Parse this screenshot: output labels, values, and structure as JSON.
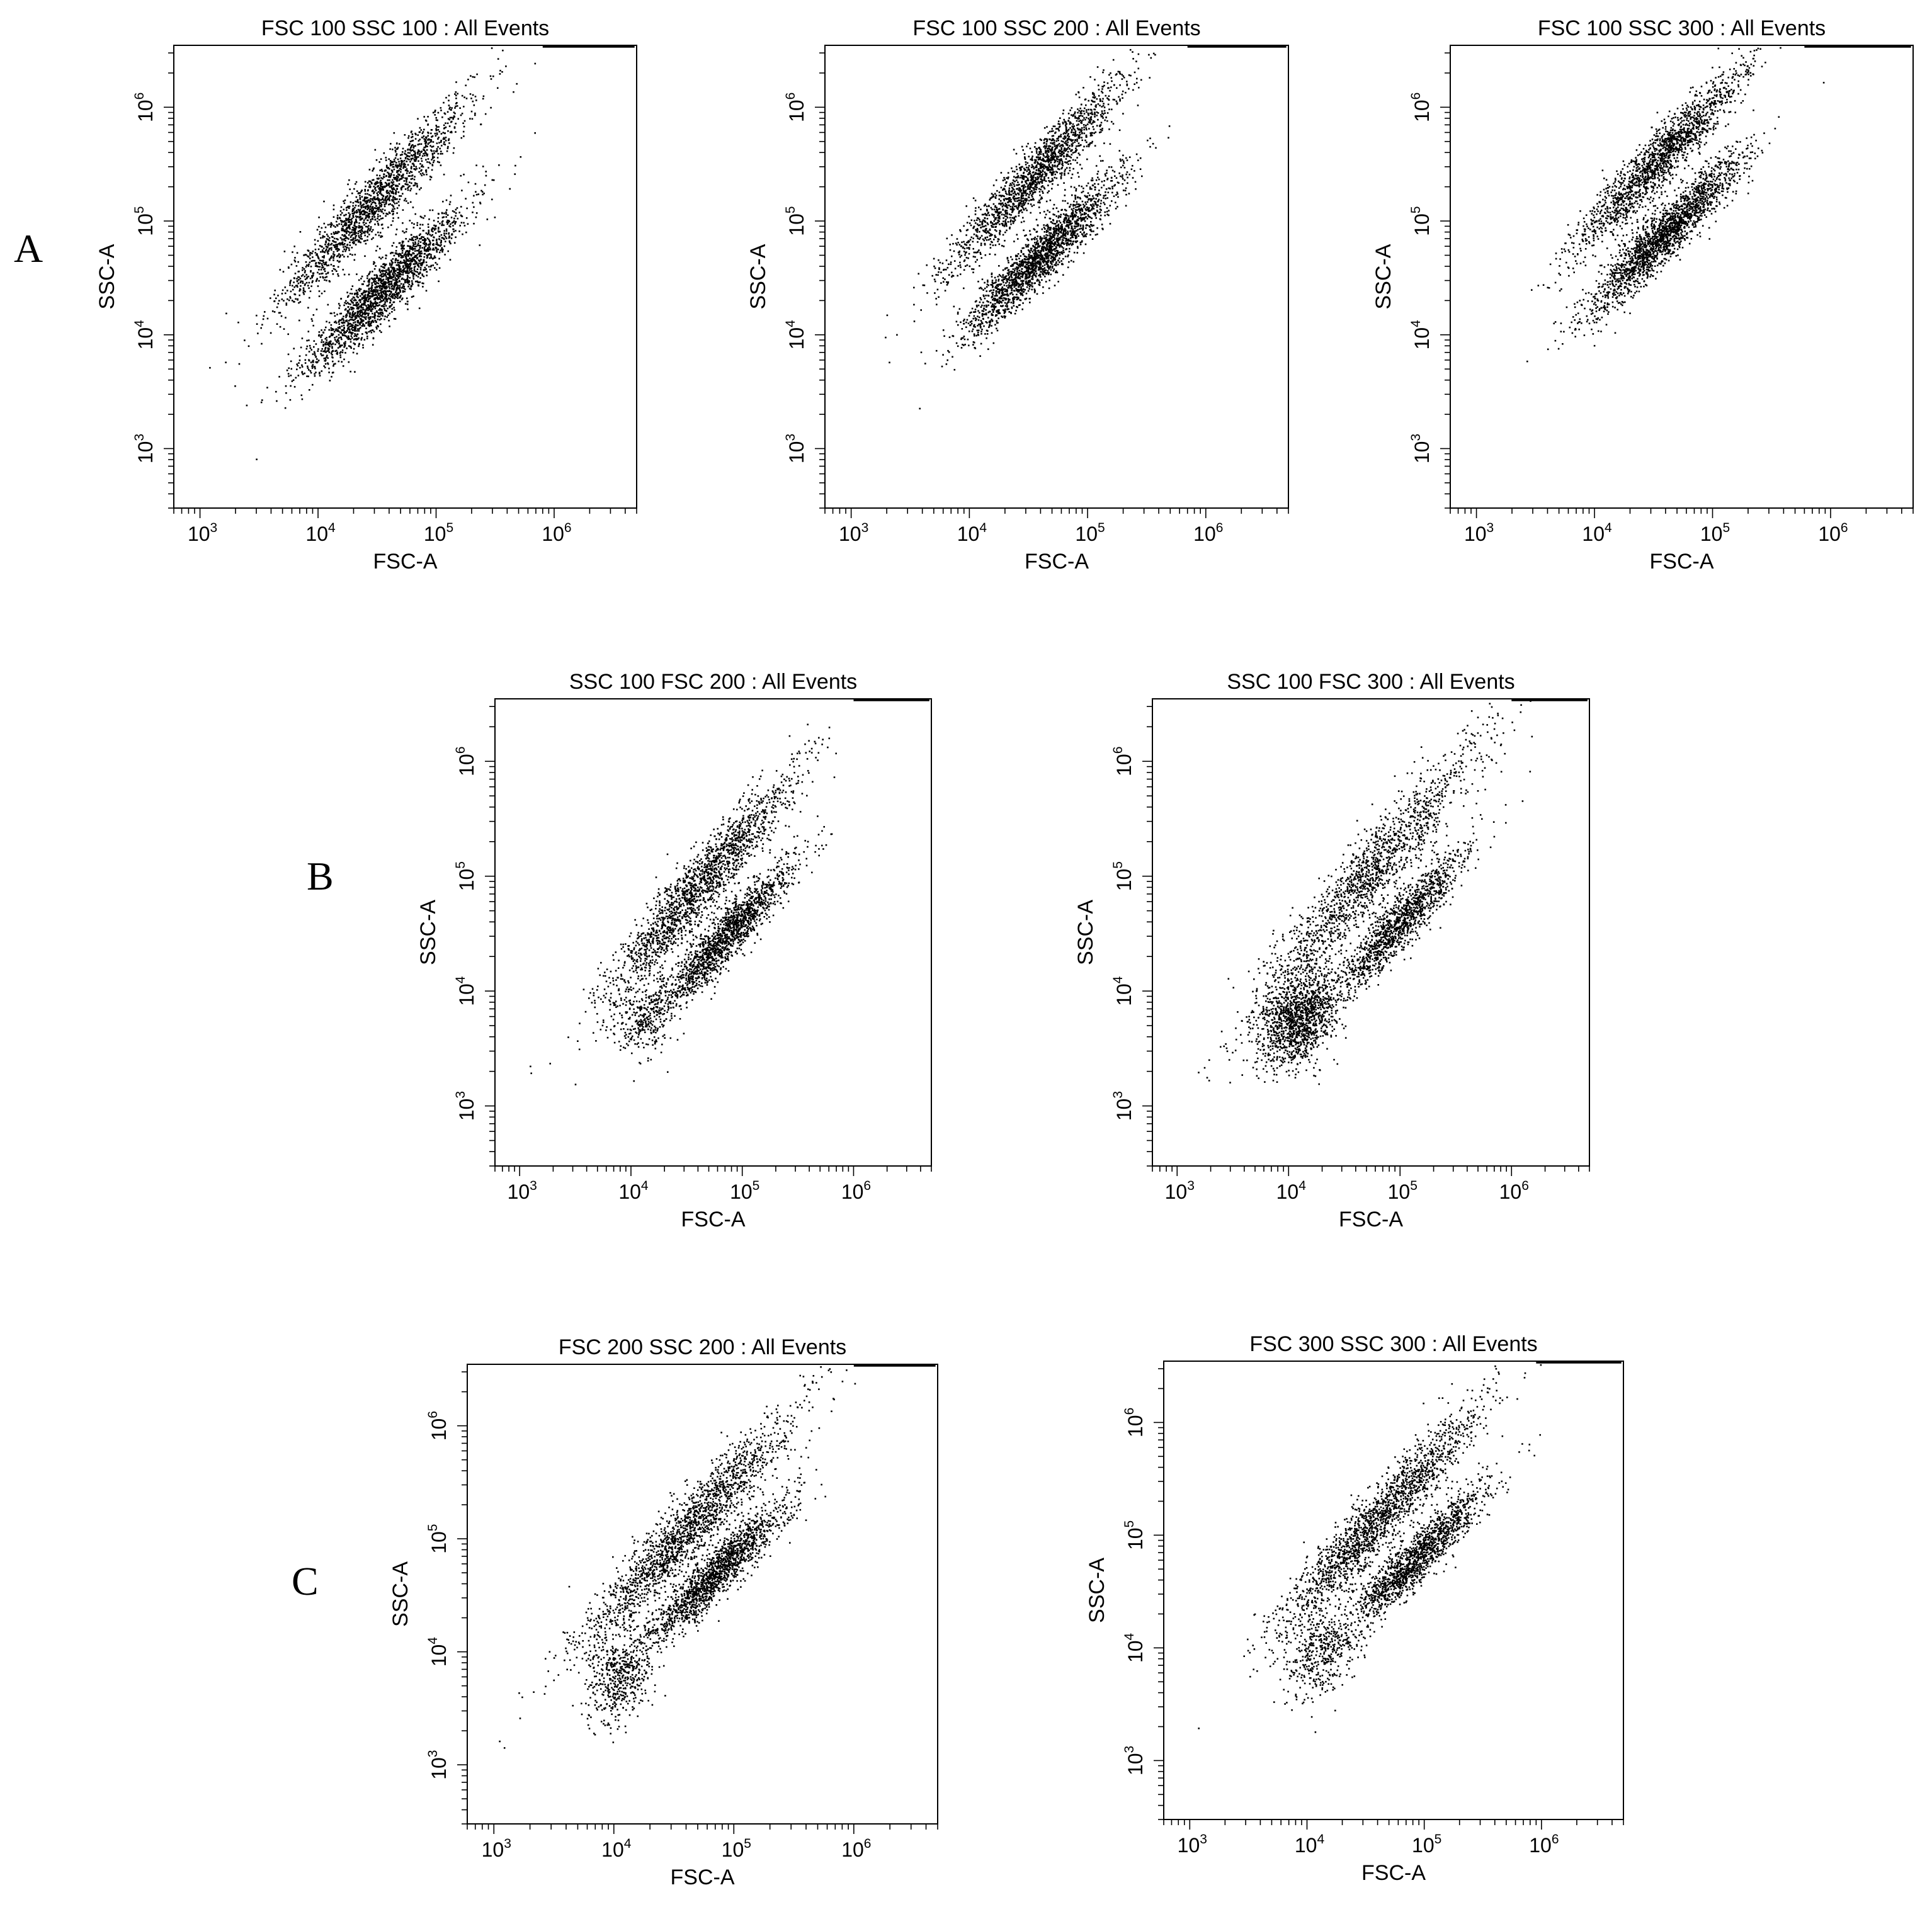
{
  "panel_letters": [
    "A",
    "B",
    "C"
  ],
  "chart_data": [
    {
      "type": "scatter",
      "panel": "A",
      "title": "FSC 100 SSC 100 : All Events",
      "xlabel": "FSC-A",
      "ylabel": "SSC-A",
      "xscale": "log",
      "yscale": "log",
      "xlim": [
        600,
        5000000
      ],
      "ylim": [
        300,
        3500000
      ],
      "xticks": [
        "10^3",
        "10^4",
        "10^5",
        "10^6"
      ],
      "yticks": [
        "10^3",
        "10^4",
        "10^5",
        "10^6"
      ],
      "grid": false,
      "series": [
        {
          "center_x": 30000,
          "center_y": 150000,
          "log_spread_x": 0.4,
          "log_spread_y": 0.32,
          "slope": 1.08,
          "n": 1700
        },
        {
          "center_x": 35000,
          "center_y": 25000,
          "log_spread_x": 0.34,
          "log_spread_y": 0.3,
          "slope": 1.0,
          "n": 2000
        }
      ],
      "saturation": {
        "x_from": 800000,
        "x_to": 4800000,
        "y": 3400000
      }
    },
    {
      "type": "scatter",
      "panel": "A",
      "title": "FSC 100 SSC 200 : All Events",
      "xlabel": "FSC-A",
      "ylabel": "SSC-A",
      "xscale": "log",
      "yscale": "log",
      "xlim": [
        600,
        5000000
      ],
      "ylim": [
        300,
        3500000
      ],
      "xticks": [
        "10^3",
        "10^4",
        "10^5",
        "10^6"
      ],
      "yticks": [
        "10^3",
        "10^4",
        "10^5",
        "10^6"
      ],
      "grid": false,
      "series": [
        {
          "center_x": 35000,
          "center_y": 250000,
          "log_spread_x": 0.38,
          "log_spread_y": 0.3,
          "slope": 1.08,
          "n": 1700
        },
        {
          "center_x": 40000,
          "center_y": 50000,
          "log_spread_x": 0.32,
          "log_spread_y": 0.28,
          "slope": 1.0,
          "n": 2000
        }
      ],
      "saturation": {
        "x_from": 700000,
        "x_to": 4800000,
        "y": 3400000
      }
    },
    {
      "type": "scatter",
      "panel": "A",
      "title": "FSC 100 SSC 300 : All Events",
      "xlabel": "FSC-A",
      "ylabel": "SSC-A",
      "xscale": "log",
      "yscale": "log",
      "xlim": [
        600,
        5000000
      ],
      "ylim": [
        300,
        3500000
      ],
      "xticks": [
        "10^3",
        "10^4",
        "10^5",
        "10^6"
      ],
      "yticks": [
        "10^3",
        "10^4",
        "10^5",
        "10^6"
      ],
      "grid": false,
      "series": [
        {
          "center_x": 35000,
          "center_y": 350000,
          "log_spread_x": 0.36,
          "log_spread_y": 0.3,
          "slope": 1.08,
          "n": 1700
        },
        {
          "center_x": 40000,
          "center_y": 80000,
          "log_spread_x": 0.32,
          "log_spread_y": 0.28,
          "slope": 1.0,
          "n": 2000
        }
      ],
      "saturation": {
        "x_from": 600000,
        "x_to": 4800000,
        "y": 3400000
      }
    },
    {
      "type": "scatter",
      "panel": "B",
      "title": "SSC 100 FSC 200 : All Events",
      "xlabel": "FSC-A",
      "ylabel": "SSC-A",
      "xscale": "log",
      "yscale": "log",
      "xlim": [
        600,
        5000000
      ],
      "ylim": [
        300,
        3500000
      ],
      "xticks": [
        "10^3",
        "10^4",
        "10^5",
        "10^6"
      ],
      "yticks": [
        "10^3",
        "10^4",
        "10^5",
        "10^6"
      ],
      "grid": false,
      "series": [
        {
          "center_x": 40000,
          "center_y": 80000,
          "log_spread_x": 0.42,
          "log_spread_y": 0.36,
          "slope": 1.1,
          "n": 1800
        },
        {
          "center_x": 70000,
          "center_y": 30000,
          "log_spread_x": 0.3,
          "log_spread_y": 0.26,
          "slope": 1.0,
          "n": 1600
        },
        {
          "center_x": 13000,
          "center_y": 6000,
          "log_spread_x": 0.15,
          "log_spread_y": 0.4,
          "slope": 0.3,
          "n": 300
        }
      ],
      "saturation": {
        "x_from": 1000000,
        "x_to": 4800000,
        "y": 3400000
      }
    },
    {
      "type": "scatter",
      "panel": "B",
      "title": "SSC 100 FSC 300 : All Events",
      "xlabel": "FSC-A",
      "ylabel": "SSC-A",
      "xscale": "log",
      "yscale": "log",
      "xlim": [
        600,
        5000000
      ],
      "ylim": [
        300,
        3500000
      ],
      "xticks": [
        "10^3",
        "10^4",
        "10^5",
        "10^6"
      ],
      "yticks": [
        "10^3",
        "10^4",
        "10^5",
        "10^6"
      ],
      "grid": false,
      "series": [
        {
          "center_x": 50000,
          "center_y": 100000,
          "log_spread_x": 0.5,
          "log_spread_y": 0.42,
          "slope": 1.1,
          "n": 1500
        },
        {
          "center_x": 100000,
          "center_y": 40000,
          "log_spread_x": 0.3,
          "log_spread_y": 0.26,
          "slope": 1.0,
          "n": 1300
        },
        {
          "center_x": 12000,
          "center_y": 6000,
          "log_spread_x": 0.18,
          "log_spread_y": 0.45,
          "slope": 0.4,
          "n": 1300
        }
      ],
      "saturation": {
        "x_from": 1000000,
        "x_to": 4800000,
        "y": 3400000
      }
    },
    {
      "type": "scatter",
      "panel": "C",
      "title": "FSC 200 SSC 200 : All Events",
      "xlabel": "FSC-A",
      "ylabel": "SSC-A",
      "xscale": "log",
      "yscale": "log",
      "xlim": [
        600,
        5000000
      ],
      "ylim": [
        300,
        3500000
      ],
      "xticks": [
        "10^3",
        "10^4",
        "10^5",
        "10^6"
      ],
      "yticks": [
        "10^3",
        "10^4",
        "10^5",
        "10^6"
      ],
      "grid": false,
      "series": [
        {
          "center_x": 40000,
          "center_y": 120000,
          "log_spread_x": 0.44,
          "log_spread_y": 0.36,
          "slope": 1.1,
          "n": 1800
        },
        {
          "center_x": 70000,
          "center_y": 50000,
          "log_spread_x": 0.3,
          "log_spread_y": 0.26,
          "slope": 1.0,
          "n": 1600
        },
        {
          "center_x": 11000,
          "center_y": 6000,
          "log_spread_x": 0.15,
          "log_spread_y": 0.45,
          "slope": 0.35,
          "n": 500
        }
      ],
      "saturation": {
        "x_from": 1000000,
        "x_to": 4800000,
        "y": 3400000
      }
    },
    {
      "type": "scatter",
      "panel": "C",
      "title": "FSC 300 SSC 300 : All Events",
      "xlabel": "FSC-A",
      "ylabel": "SSC-A",
      "xscale": "log",
      "yscale": "log",
      "xlim": [
        600,
        5000000
      ],
      "ylim": [
        300,
        3500000
      ],
      "xticks": [
        "10^3",
        "10^4",
        "10^5",
        "10^6"
      ],
      "yticks": [
        "10^3",
        "10^4",
        "10^5",
        "10^6"
      ],
      "grid": false,
      "series": [
        {
          "center_x": 40000,
          "center_y": 140000,
          "log_spread_x": 0.42,
          "log_spread_y": 0.34,
          "slope": 1.1,
          "n": 1800
        },
        {
          "center_x": 80000,
          "center_y": 60000,
          "log_spread_x": 0.3,
          "log_spread_y": 0.26,
          "slope": 1.0,
          "n": 1500
        },
        {
          "center_x": 13000,
          "center_y": 9000,
          "log_spread_x": 0.15,
          "log_spread_y": 0.4,
          "slope": 0.35,
          "n": 400
        }
      ],
      "saturation": {
        "x_from": 900000,
        "x_to": 4800000,
        "y": 3400000
      }
    }
  ]
}
